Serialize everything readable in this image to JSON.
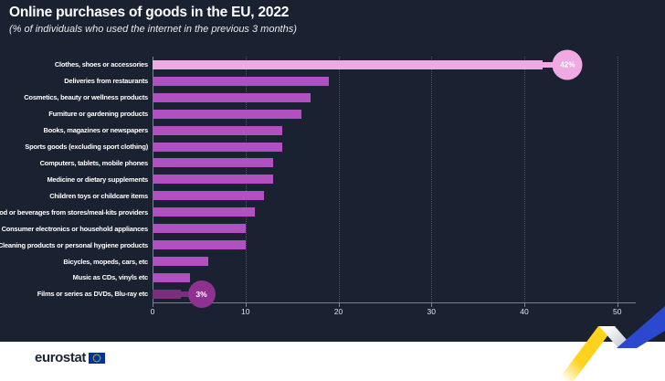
{
  "title": "Online purchases of goods in the EU, 2022",
  "subtitle": "(% of individuals who used the internet in the previous 3 months)",
  "chart_data": {
    "type": "bar",
    "orientation": "horizontal",
    "title": "Online purchases of goods in the EU, 2022",
    "subtitle": "(% of individuals who used the internet in the previous 3 months)",
    "categories": [
      "Clothes, shoes or accessories",
      "Deliveries from restaurants",
      "Cosmetics, beauty or wellness products",
      "Furniture or gardening products",
      "Books, magazines or newspapers",
      "Sports goods (excluding sport clothing)",
      "Computers, tablets, mobile phones",
      "Medicine or dietary supplements",
      "Children toys or childcare items",
      "Food or beverages from stores/meal-kits providers",
      "Consumer electronics or household appliances",
      "Cleaning products or personal hygiene products",
      "Bicycles, mopeds, cars, etc",
      "Music as CDs, vinyls etc",
      "Films or series as DVDs, Blu-ray etc"
    ],
    "values": [
      42,
      19,
      17,
      16,
      14,
      14,
      13,
      13,
      12,
      11,
      10,
      10,
      6,
      4,
      3
    ],
    "value_labels": [
      {
        "index": 0,
        "label": "42%"
      },
      {
        "index": 14,
        "label": "3%"
      }
    ],
    "xticks": [
      0,
      10,
      20,
      30,
      40,
      50
    ],
    "xlim": [
      0,
      50
    ],
    "xlabel": "",
    "ylabel": "",
    "grid": "dotted-vertical-gridlines",
    "legend": "none"
  },
  "colors": {
    "background": "#1a2130",
    "bar": "#b150c0",
    "bar_first": "#efaae3",
    "bar_last": "#7c2d7d",
    "badge_last": "#8e3190",
    "axis": "#79828f",
    "grid": "#4a5466",
    "ribbon_yellow": "#ffd21e",
    "ribbon_blue": "#2b49cf",
    "eu_flag_blue": "#003399",
    "eu_flag_stars": "#ffcc00"
  },
  "footer": {
    "logo_text": "eurostat"
  }
}
